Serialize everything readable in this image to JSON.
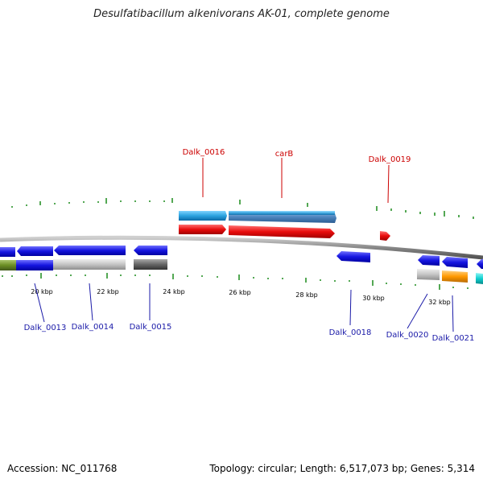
{
  "title": "Desulfatibacillum alkenivorans AK-01, complete genome",
  "accession": "Accession: NC_011768",
  "summary": "Topology: circular; Length: 6,517,073 bp; Genes: 5,314",
  "scale_labels": [
    "20 kbp",
    "22 kbp",
    "24 kbp",
    "26 kbp",
    "28 kbp",
    "30 kbp",
    "32 kbp"
  ],
  "gene_labels_top": [
    "Dalk_0016",
    "carB",
    "Dalk_0019"
  ],
  "gene_labels_bottom": [
    "Dalk_0013",
    "Dalk_0014",
    "Dalk_0015",
    "Dalk_0018",
    "Dalk_0020",
    "Dalk_0021"
  ],
  "colors": {
    "forward_blue": "#2b8fd6",
    "forward_red": "#e01010",
    "reverse_blue": "#1010d8",
    "grey": "#c0c0c0",
    "dark_grey": "#606060",
    "green": "#6b8e23",
    "orange": "#ff9900",
    "cyan": "#00cccc",
    "tick_green": "#1a8a1a",
    "backbone": "#999999"
  }
}
